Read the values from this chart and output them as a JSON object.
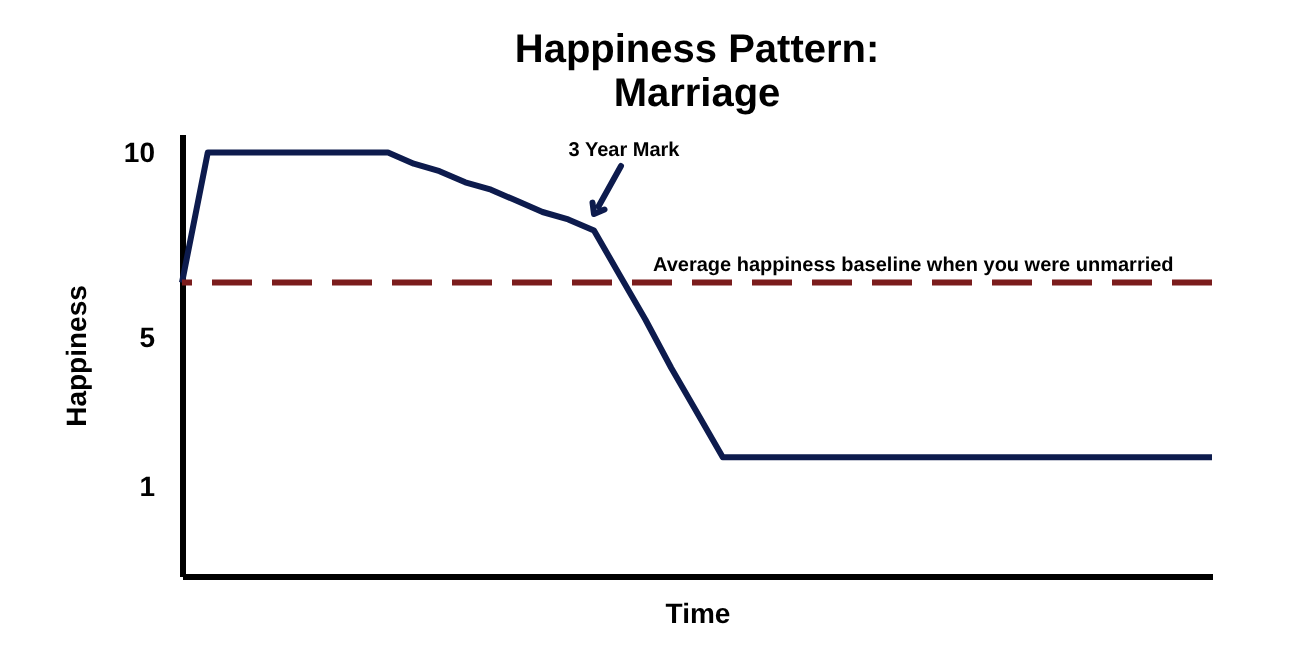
{
  "chart_data": {
    "type": "line",
    "title": "Happiness Pattern:\nMarriage",
    "xlabel": "Time",
    "ylabel": "Happiness",
    "categories": [
      null,
      null,
      null,
      null,
      null,
      null,
      null,
      null,
      null,
      null,
      null,
      null,
      null,
      null,
      null,
      null,
      null,
      null,
      null,
      null,
      null,
      null,
      null,
      null,
      null,
      null,
      null,
      null,
      null,
      null,
      null,
      null,
      null,
      null,
      null,
      null,
      null,
      null,
      null,
      null,
      null
    ],
    "series": [
      {
        "color": "#0d1b4d",
        "values": [
          6.5,
          10,
          10,
          10,
          10,
          10,
          10,
          10,
          10,
          9.7,
          9.5,
          9.2,
          9.0,
          8.7,
          8.4,
          8.2,
          7.9,
          6.7,
          5.5,
          4.2,
          3.0,
          1.8,
          1.8,
          1.8,
          1.8,
          1.8,
          1.8,
          1.8,
          1.8,
          1.8,
          1.8,
          1.8,
          1.8,
          1.8,
          1.8,
          1.8,
          1.8,
          1.8,
          1.8,
          1.8,
          1.8
        ]
      }
    ],
    "ylim": [
      -1.4,
      10.5
    ],
    "yticks": [
      10,
      5,
      1
    ],
    "tick_labels": "y",
    "grid": false,
    "marker": "none",
    "line_style": "solid",
    "ref_lines": [
      {
        "axis": "y",
        "value": 6.5,
        "label": "Average happiness baseline when you were unmarried",
        "color": "#7b1c1c",
        "line_style": "dashed"
      }
    ],
    "annotations": [
      "3 Year Mark"
    ]
  }
}
